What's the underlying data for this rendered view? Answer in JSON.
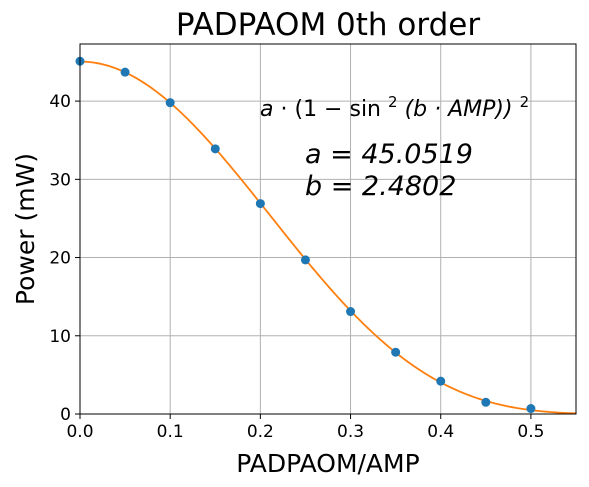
{
  "chart_data": {
    "type": "scatter",
    "title": "PADPAOM 0th order",
    "xlabel": "PADPAOM/AMP",
    "ylabel": "Power (mW)",
    "xlim": [
      0.0,
      0.55
    ],
    "ylim": [
      0,
      47.3
    ],
    "xticks": [
      0.0,
      0.1,
      0.2,
      0.3,
      0.4,
      0.5
    ],
    "xtick_labels": [
      "0.0",
      "0.1",
      "0.2",
      "0.3",
      "0.4",
      "0.5"
    ],
    "yticks": [
      0,
      10,
      20,
      30,
      40
    ],
    "ytick_labels": [
      "0",
      "10",
      "20",
      "30",
      "40"
    ],
    "grid": true,
    "series": [
      {
        "kind": "points",
        "color": "#1f77b4",
        "x": [
          0.0,
          0.05,
          0.1,
          0.15,
          0.2,
          0.25,
          0.3,
          0.35,
          0.4,
          0.45,
          0.5
        ],
        "y": [
          45.1,
          43.7,
          39.8,
          33.9,
          26.9,
          19.7,
          13.1,
          7.9,
          4.2,
          1.5,
          0.7
        ]
      },
      {
        "kind": "fit_curve",
        "color": "#ff7f0e",
        "a": 45.0519,
        "b": 2.4802
      }
    ],
    "annotations": {
      "formula": {
        "prefix": "a",
        "dot": "·",
        "one_minus": "(1 − sin",
        "exp": "2",
        "inner": "(b · AMP))",
        "outer_exp": "2"
      },
      "a_text": "a = 45.0519",
      "b_text": "b = 2.4802"
    }
  }
}
